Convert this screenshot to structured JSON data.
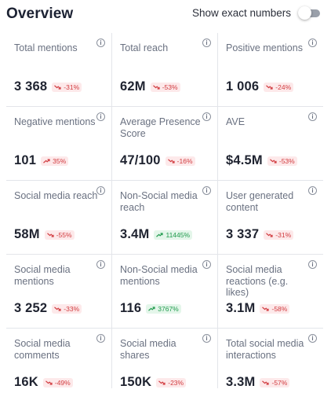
{
  "header": {
    "title": "Overview",
    "toggle_label": "Show exact numbers",
    "toggle_on": false
  },
  "colors": {
    "negative": "#d13b3f",
    "negative_bg": "#fde9ea",
    "positive": "#1f9a4c",
    "positive_bg": "#e4f6ea"
  },
  "cards": [
    {
      "label": "Total mentions",
      "value": "3 368",
      "change": "-31%",
      "trend": "down"
    },
    {
      "label": "Total reach",
      "value": "62M",
      "change": "-53%",
      "trend": "down"
    },
    {
      "label": "Positive mentions",
      "value": "1 006",
      "change": "-24%",
      "trend": "down"
    },
    {
      "label": "Negative mentions",
      "value": "101",
      "change": "35%",
      "trend": "up-bad"
    },
    {
      "label": "Average Presence Score",
      "value": "47/100",
      "change": "-16%",
      "trend": "down"
    },
    {
      "label": "AVE",
      "value": "$4.5M",
      "change": "-53%",
      "trend": "down"
    },
    {
      "label": "Social media reach",
      "value": "58M",
      "change": "-55%",
      "trend": "down"
    },
    {
      "label": "Non-Social media reach",
      "value": "3.4M",
      "change": "11445%",
      "trend": "up"
    },
    {
      "label": "User generated content",
      "value": "3 337",
      "change": "-31%",
      "trend": "down"
    },
    {
      "label": "Social media mentions",
      "value": "3 252",
      "change": "-33%",
      "trend": "down"
    },
    {
      "label": "Non-Social media mentions",
      "value": "116",
      "change": "3767%",
      "trend": "up"
    },
    {
      "label": "Social media reactions (e.g. likes)",
      "value": "3.1M",
      "change": "-58%",
      "trend": "down"
    },
    {
      "label": "Social media comments",
      "value": "16K",
      "change": "-49%",
      "trend": "down"
    },
    {
      "label": "Social media shares",
      "value": "150K",
      "change": "-23%",
      "trend": "down"
    },
    {
      "label": "Total social media interactions",
      "value": "3.3M",
      "change": "-57%",
      "trend": "down"
    }
  ]
}
